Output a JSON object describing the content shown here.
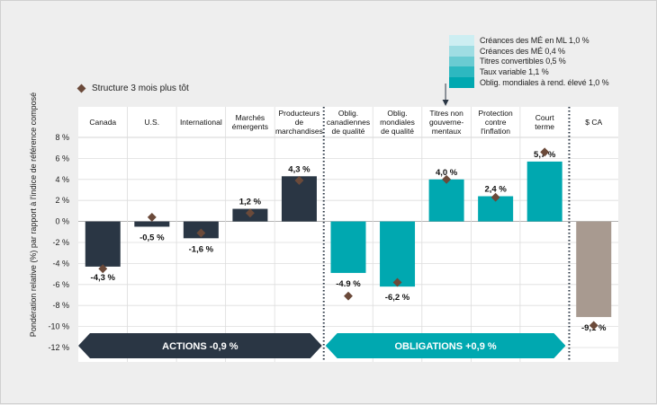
{
  "legend": {
    "stack": [
      {
        "label": "Créances des MÉ en ML 1,0 %",
        "color": "#cdeef2"
      },
      {
        "label": "Créances des MÉ 0,4 %",
        "color": "#9fdde3"
      },
      {
        "label": "Titres convertibles 0,5 %",
        "color": "#6acbd2"
      },
      {
        "label": "Taux variable 1,1 %",
        "color": "#2db8c0"
      },
      {
        "label": "Oblig. mondiales à rend. élevé 1,0 %",
        "color": "#00a8b0"
      }
    ],
    "marker_label": "Structure 3 mois plus tôt"
  },
  "chart_data": {
    "type": "bar",
    "ylabel": "Pondération relative (%) par rapport à l'indice de référence composé",
    "ylim": [
      -12,
      8
    ],
    "yticks": [
      "8 %",
      "6 %",
      "4 %",
      "2 %",
      "0 %",
      "-2 %",
      "-4 %",
      "-6 %",
      "-8 %",
      "-10 %",
      "-12 %"
    ],
    "ytick_values": [
      8,
      6,
      4,
      2,
      0,
      -2,
      -4,
      -6,
      -8,
      -10,
      -12
    ],
    "categories": [
      "Canada",
      "U.S.",
      "International",
      "Marchés\némergents",
      "Producteurs\nde\nmarchandises",
      "Oblig.\ncanadiennes\nde qualité",
      "Oblig.\nmondiales\nde qualité",
      "Titres non\ngouverne-\nmentaux",
      "Protection\ncontre\nl'inflation",
      "Court\nterme",
      "$ CA"
    ],
    "values": [
      -4.3,
      -0.5,
      -1.6,
      1.2,
      4.3,
      -4.9,
      -6.2,
      4.0,
      2.4,
      5.7,
      -9.1
    ],
    "value_labels": [
      "-4,3 %",
      "-0,5 %",
      "-1,6 %",
      "1,2 %",
      "4,3 %",
      "-4.9 %",
      "-6,2 %",
      "4,0 %",
      "2,4 %",
      "5,7 %",
      "-9,1 %"
    ],
    "previous": [
      -4.5,
      0.4,
      -1.1,
      0.8,
      3.9,
      -7.1,
      -5.8,
      4.0,
      2.3,
      6.6,
      -9.9
    ],
    "colors": [
      "#2a3644",
      "#2a3644",
      "#2a3644",
      "#2a3644",
      "#2a3644",
      "#00a8b0",
      "#00a8b0",
      "#00a8b0",
      "#00a8b0",
      "#00a8b0",
      "#a89a90"
    ],
    "marker_color": "#6b4a3a",
    "groups": [
      {
        "label": "ACTIONS -0,9 %",
        "color": "#2a3644"
      },
      {
        "label": "OBLIGATIONS +0,9 %",
        "color": "#00a8b0"
      }
    ],
    "grid": true
  }
}
